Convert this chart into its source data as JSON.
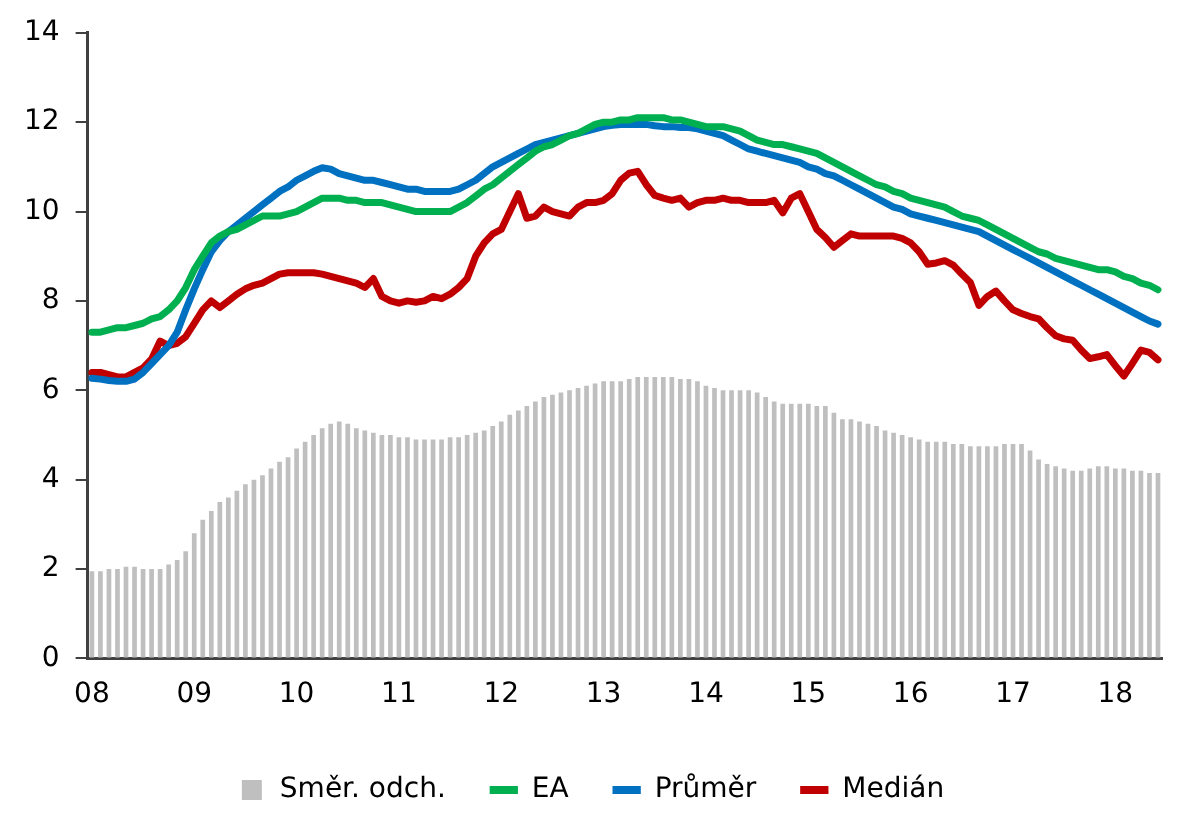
{
  "chart_data": {
    "type": "bar",
    "categories": [
      "08",
      null,
      null,
      null,
      null,
      null,
      null,
      null,
      null,
      null,
      null,
      null,
      "09",
      null,
      null,
      null,
      null,
      null,
      null,
      null,
      null,
      null,
      null,
      null,
      "10",
      null,
      null,
      null,
      null,
      null,
      null,
      null,
      null,
      null,
      null,
      null,
      "11",
      null,
      null,
      null,
      null,
      null,
      null,
      null,
      null,
      null,
      null,
      null,
      "12",
      null,
      null,
      null,
      null,
      null,
      null,
      null,
      null,
      null,
      null,
      null,
      "13",
      null,
      null,
      null,
      null,
      null,
      null,
      null,
      null,
      null,
      null,
      null,
      "14",
      null,
      null,
      null,
      null,
      null,
      null,
      null,
      null,
      null,
      null,
      null,
      "15",
      null,
      null,
      null,
      null,
      null,
      null,
      null,
      null,
      null,
      null,
      null,
      "16",
      null,
      null,
      null,
      null,
      null,
      null,
      null,
      null,
      null,
      null,
      null,
      "17",
      null,
      null,
      null,
      null,
      null,
      null,
      null,
      null,
      null,
      null,
      null,
      "18",
      null,
      null,
      null,
      null,
      null
    ],
    "series": [
      {
        "name": "Směr. odch.",
        "color": "#bfbfbf",
        "values": [
          1.95,
          1.95,
          2.0,
          2.0,
          2.05,
          2.05,
          2.0,
          2.0,
          2.0,
          2.1,
          2.2,
          2.4,
          2.8,
          3.1,
          3.3,
          3.5,
          3.6,
          3.75,
          3.9,
          4.0,
          4.1,
          4.25,
          4.4,
          4.5,
          4.7,
          4.85,
          5.0,
          5.15,
          5.25,
          5.3,
          5.25,
          5.15,
          5.1,
          5.05,
          5.0,
          5.0,
          4.95,
          4.95,
          4.9,
          4.9,
          4.9,
          4.9,
          4.95,
          4.95,
          5.0,
          5.05,
          5.1,
          5.2,
          5.3,
          5.45,
          5.55,
          5.65,
          5.75,
          5.85,
          5.9,
          5.95,
          6.0,
          6.05,
          6.1,
          6.15,
          6.2,
          6.2,
          6.2,
          6.25,
          6.3,
          6.3,
          6.3,
          6.3,
          6.3,
          6.25,
          6.25,
          6.2,
          6.1,
          6.05,
          6.0,
          6.0,
          6.0,
          6.0,
          5.95,
          5.85,
          5.75,
          5.7,
          5.7,
          5.7,
          5.7,
          5.65,
          5.65,
          5.5,
          5.35,
          5.35,
          5.3,
          5.25,
          5.2,
          5.1,
          5.05,
          5.0,
          4.95,
          4.9,
          4.85,
          4.85,
          4.85,
          4.8,
          4.8,
          4.75,
          4.75,
          4.75,
          4.75,
          4.8,
          4.8,
          4.8,
          4.65,
          4.45,
          4.35,
          4.3,
          4.25,
          4.2,
          4.2,
          4.25,
          4.3,
          4.3,
          4.25,
          4.25,
          4.2,
          4.2,
          4.15,
          4.15
        ]
      },
      {
        "name": "EA",
        "type": "line",
        "color": "#00b050",
        "values": [
          7.3,
          7.3,
          7.35,
          7.4,
          7.4,
          7.45,
          7.5,
          7.6,
          7.65,
          7.8,
          8.0,
          8.3,
          8.7,
          9.0,
          9.3,
          9.45,
          9.55,
          9.6,
          9.7,
          9.8,
          9.9,
          9.9,
          9.9,
          9.95,
          10.0,
          10.1,
          10.2,
          10.3,
          10.3,
          10.3,
          10.25,
          10.25,
          10.2,
          10.2,
          10.2,
          10.15,
          10.1,
          10.05,
          10.0,
          10.0,
          10.0,
          10.0,
          10.0,
          10.1,
          10.2,
          10.35,
          10.5,
          10.6,
          10.75,
          10.9,
          11.05,
          11.2,
          11.35,
          11.45,
          11.5,
          11.6,
          11.7,
          11.75,
          11.85,
          11.95,
          12.0,
          12.0,
          12.05,
          12.05,
          12.1,
          12.1,
          12.1,
          12.1,
          12.05,
          12.05,
          12.0,
          11.95,
          11.9,
          11.9,
          11.9,
          11.85,
          11.8,
          11.7,
          11.6,
          11.55,
          11.5,
          11.5,
          11.45,
          11.4,
          11.35,
          11.3,
          11.2,
          11.1,
          11.0,
          10.9,
          10.8,
          10.7,
          10.6,
          10.55,
          10.45,
          10.4,
          10.3,
          10.25,
          10.2,
          10.15,
          10.1,
          10.0,
          9.9,
          9.85,
          9.8,
          9.7,
          9.6,
          9.5,
          9.4,
          9.3,
          9.2,
          9.1,
          9.05,
          8.95,
          8.9,
          8.85,
          8.8,
          8.75,
          8.7,
          8.7,
          8.65,
          8.55,
          8.5,
          8.4,
          8.35,
          8.25
        ]
      },
      {
        "name": "Průměr",
        "type": "line",
        "color": "#0070c0",
        "values": [
          6.27,
          6.25,
          6.22,
          6.2,
          6.2,
          6.25,
          6.4,
          6.6,
          6.8,
          7.0,
          7.3,
          7.8,
          8.27,
          8.7,
          9.1,
          9.35,
          9.55,
          9.7,
          9.85,
          10.0,
          10.15,
          10.3,
          10.45,
          10.55,
          10.7,
          10.8,
          10.9,
          10.98,
          10.95,
          10.85,
          10.8,
          10.75,
          10.7,
          10.7,
          10.65,
          10.6,
          10.55,
          10.5,
          10.5,
          10.45,
          10.45,
          10.45,
          10.45,
          10.5,
          10.6,
          10.7,
          10.85,
          11.0,
          11.1,
          11.2,
          11.3,
          11.4,
          11.5,
          11.55,
          11.6,
          11.65,
          11.7,
          11.75,
          11.8,
          11.85,
          11.9,
          11.93,
          11.95,
          11.95,
          11.95,
          11.95,
          11.92,
          11.9,
          11.9,
          11.88,
          11.88,
          11.85,
          11.8,
          11.75,
          11.7,
          11.6,
          11.5,
          11.4,
          11.35,
          11.3,
          11.25,
          11.2,
          11.15,
          11.1,
          11.0,
          10.95,
          10.85,
          10.8,
          10.7,
          10.6,
          10.5,
          10.4,
          10.3,
          10.2,
          10.1,
          10.05,
          9.95,
          9.9,
          9.85,
          9.8,
          9.75,
          9.7,
          9.65,
          9.6,
          9.55,
          9.45,
          9.35,
          9.25,
          9.15,
          9.05,
          8.95,
          8.85,
          8.75,
          8.65,
          8.55,
          8.45,
          8.35,
          8.25,
          8.15,
          8.05,
          7.95,
          7.85,
          7.75,
          7.65,
          7.55,
          7.48
        ]
      },
      {
        "name": "Medián",
        "type": "line",
        "color": "#c00000",
        "values": [
          6.4,
          6.4,
          6.35,
          6.3,
          6.3,
          6.4,
          6.5,
          6.7,
          7.1,
          7.0,
          7.05,
          7.2,
          7.5,
          7.8,
          8.0,
          7.85,
          8.0,
          8.15,
          8.27,
          8.35,
          8.4,
          8.5,
          8.6,
          8.63,
          8.63,
          8.63,
          8.63,
          8.6,
          8.55,
          8.5,
          8.45,
          8.4,
          8.3,
          8.5,
          8.1,
          8.0,
          7.95,
          8.0,
          7.97,
          8.0,
          8.1,
          8.05,
          8.15,
          8.3,
          8.5,
          9.0,
          9.3,
          9.5,
          9.6,
          10.0,
          10.4,
          9.85,
          9.9,
          10.1,
          10.0,
          9.95,
          9.9,
          10.1,
          10.2,
          10.2,
          10.25,
          10.4,
          10.7,
          10.86,
          10.9,
          10.6,
          10.36,
          10.3,
          10.25,
          10.3,
          10.1,
          10.2,
          10.25,
          10.25,
          10.3,
          10.25,
          10.25,
          10.2,
          10.2,
          10.2,
          10.25,
          9.97,
          10.3,
          10.4,
          10.0,
          9.6,
          9.42,
          9.2,
          9.35,
          9.5,
          9.45,
          9.45,
          9.45,
          9.45,
          9.45,
          9.4,
          9.3,
          9.1,
          8.82,
          8.85,
          8.9,
          8.8,
          8.6,
          8.41,
          7.9,
          8.1,
          8.22,
          8.0,
          7.8,
          7.72,
          7.65,
          7.6,
          7.4,
          7.22,
          7.15,
          7.12,
          6.9,
          6.71,
          6.75,
          6.8,
          6.55,
          6.32,
          6.6,
          6.9,
          6.85,
          6.68
        ]
      }
    ],
    "ylim": [
      0,
      14
    ],
    "yticks": [
      0,
      2,
      4,
      6,
      8,
      10,
      12,
      14
    ],
    "grid": false,
    "legend": "bottom",
    "marker": "none",
    "line_style": "solid"
  }
}
